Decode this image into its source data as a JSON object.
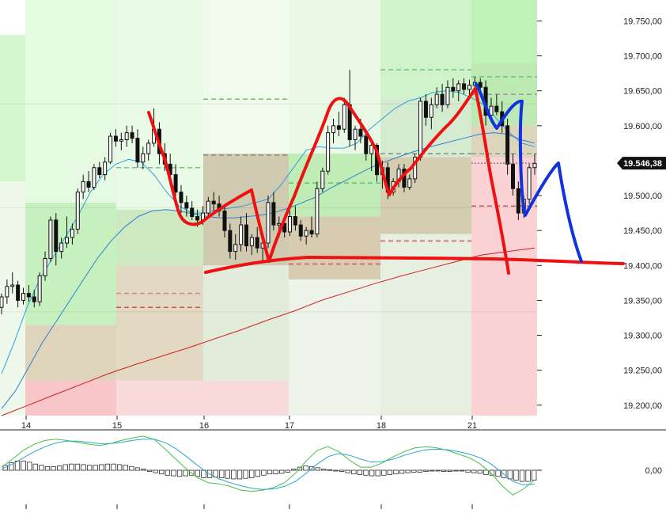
{
  "chart_data": [
    {
      "type": "candlestick",
      "title": "",
      "xlabel": "",
      "ylabel": "",
      "x_tick_labels": [
        "14",
        "15",
        "16",
        "17",
        "18",
        "21"
      ],
      "y_tick_labels": [
        "19.750,00",
        "19.700,00",
        "19.650,00",
        "19.600,00",
        "19.500,00",
        "19.450,00",
        "19.400,00",
        "19.350,00",
        "19.300,00",
        "19.250,00",
        "19.200,00"
      ],
      "y_tick_values": [
        19750,
        19700,
        19650,
        19600,
        19500,
        19450,
        19400,
        19350,
        19300,
        19250,
        19200
      ],
      "ylim": [
        19185,
        19780
      ],
      "grid": false,
      "last_price": 19546.38,
      "last_price_label": "19.546,38",
      "day_bands": [
        {
          "day": "13",
          "zones": [
            [
              19520,
              19730,
              "#d4f7d0"
            ],
            [
              19185,
              19520,
              "#eef9ec"
            ]
          ]
        },
        {
          "day": "14",
          "zones": [
            [
              19490,
              19780,
              "#e6f9e2"
            ],
            [
              19315,
              19490,
              "#c6f1bf"
            ],
            [
              19235,
              19315,
              "#ddd4bb"
            ],
            [
              19185,
              19235,
              "#f8c6c8"
            ]
          ]
        },
        {
          "day": "15",
          "zones": [
            [
              19480,
              19780,
              "#e9fbe6"
            ],
            [
              19400,
              19480,
              "#cde9c2"
            ],
            [
              19235,
              19400,
              "#e3d9c2"
            ],
            [
              19185,
              19235,
              "#f9dadb"
            ]
          ]
        },
        {
          "day": "16",
          "zones": [
            [
              19560,
              19780,
              "#f0fbee"
            ],
            [
              19400,
              19560,
              "#cfcab0"
            ],
            [
              19235,
              19400,
              "#e2ecdb"
            ],
            [
              19185,
              19235,
              "#f9dadb"
            ]
          ]
        },
        {
          "day": "17",
          "zones": [
            [
              19560,
              19780,
              "#eaf9e6"
            ],
            [
              19470,
              19560,
              "#bfedb5"
            ],
            [
              19380,
              19470,
              "#d8ccb0"
            ],
            [
              19185,
              19380,
              "#eef3e9"
            ]
          ]
        },
        {
          "day": "18",
          "zones": [
            [
              19640,
              19780,
              "#d1f3cb"
            ],
            [
              19555,
              19640,
              "#d5ebcf"
            ],
            [
              19445,
              19555,
              "#d4cdb0"
            ],
            [
              19185,
              19445,
              "#e6efe0"
            ]
          ]
        },
        {
          "day": "21",
          "zones": [
            [
              19690,
              19780,
              "#bff2b6"
            ],
            [
              19600,
              19690,
              "#bdeab2"
            ],
            [
              19555,
              19600,
              "#ddd4bc"
            ],
            [
              19185,
              19555,
              "#fad2d4"
            ]
          ]
        }
      ],
      "pivot_lines": [
        {
          "day": "15",
          "y": 19540,
          "color": "#7cc47a"
        },
        {
          "day": "15",
          "y": 19360,
          "color": "#c78a8a"
        },
        {
          "day": "15",
          "y": 19340,
          "color": "#c55"
        },
        {
          "day": "16",
          "y": 19638,
          "color": "#6bbf6b"
        },
        {
          "day": "16",
          "y": 19558,
          "color": "#888"
        },
        {
          "day": "17",
          "y": 19518,
          "color": "#6bbf6b"
        },
        {
          "day": "17",
          "y": 19402,
          "color": "#c55"
        },
        {
          "day": "18",
          "y": 19680,
          "color": "#6bbf6b"
        },
        {
          "day": "18",
          "y": 19560,
          "color": "#888"
        },
        {
          "day": "18",
          "y": 19435,
          "color": "#c55"
        },
        {
          "day": "21",
          "y": 19670,
          "color": "#6bbf6b"
        },
        {
          "day": "21",
          "y": 19645,
          "color": "#999"
        },
        {
          "day": "21",
          "y": 19560,
          "color": "#999"
        },
        {
          "day": "21",
          "y": 19485,
          "color": "#c55"
        }
      ],
      "candles": [
        [
          19340,
          19360,
          19330,
          19355
        ],
        [
          19355,
          19380,
          19345,
          19370
        ],
        [
          19370,
          19390,
          19360,
          19372
        ],
        [
          19372,
          19378,
          19340,
          19350
        ],
        [
          19350,
          19368,
          19344,
          19360
        ],
        [
          19360,
          19372,
          19348,
          19355
        ],
        [
          19355,
          19365,
          19340,
          19348
        ],
        [
          19348,
          19390,
          19342,
          19385
        ],
        [
          19385,
          19420,
          19378,
          19410
        ],
        [
          19410,
          19470,
          19405,
          19465
        ],
        [
          19465,
          19475,
          19400,
          19420
        ],
        [
          19420,
          19440,
          19410,
          19432
        ],
        [
          19432,
          19470,
          19425,
          19440
        ],
        [
          19440,
          19460,
          19430,
          19452
        ],
        [
          19452,
          19510,
          19445,
          19505
        ],
        [
          19505,
          19530,
          19495,
          19520
        ],
        [
          19520,
          19535,
          19505,
          19512
        ],
        [
          19512,
          19545,
          19508,
          19540
        ],
        [
          19540,
          19548,
          19525,
          19530
        ],
        [
          19530,
          19555,
          19522,
          19548
        ],
        [
          19548,
          19590,
          19545,
          19585
        ],
        [
          19585,
          19595,
          19570,
          19578
        ],
        [
          19578,
          19590,
          19565,
          19580
        ],
        [
          19580,
          19600,
          19570,
          19590
        ],
        [
          19590,
          19600,
          19575,
          19582
        ],
        [
          19582,
          19595,
          19540,
          19548
        ],
        [
          19548,
          19570,
          19538,
          19560
        ],
        [
          19560,
          19580,
          19550,
          19575
        ],
        [
          19575,
          19625,
          19570,
          19595
        ],
        [
          19595,
          19605,
          19545,
          19560
        ],
        [
          19560,
          19575,
          19535,
          19545
        ],
        [
          19545,
          19560,
          19520,
          19530
        ],
        [
          19530,
          19545,
          19495,
          19505
        ],
        [
          19505,
          19515,
          19475,
          19490
        ],
        [
          19490,
          19500,
          19470,
          19482
        ],
        [
          19482,
          19492,
          19465,
          19470
        ],
        [
          19470,
          19480,
          19455,
          19465
        ],
        [
          19465,
          19485,
          19458,
          19475
        ],
        [
          19475,
          19498,
          19470,
          19492
        ],
        [
          19492,
          19505,
          19478,
          19488
        ],
        [
          19488,
          19500,
          19470,
          19478
        ],
        [
          19478,
          19488,
          19440,
          19450
        ],
        [
          19450,
          19460,
          19410,
          19420
        ],
        [
          19420,
          19445,
          19408,
          19430
        ],
        [
          19430,
          19470,
          19420,
          19458
        ],
        [
          19458,
          19475,
          19420,
          19428
        ],
        [
          19428,
          19445,
          19415,
          19440
        ],
        [
          19440,
          19455,
          19418,
          19425
        ],
        [
          19425,
          19445,
          19405,
          19432
        ],
        [
          19432,
          19500,
          19425,
          19490
        ],
        [
          19490,
          19505,
          19450,
          19458
        ],
        [
          19458,
          19470,
          19440,
          19460
        ],
        [
          19460,
          19470,
          19440,
          19448
        ],
        [
          19448,
          19478,
          19442,
          19470
        ],
        [
          19470,
          19485,
          19450,
          19458
        ],
        [
          19458,
          19465,
          19435,
          19442
        ],
        [
          19442,
          19455,
          19430,
          19450
        ],
        [
          19450,
          19470,
          19440,
          19445
        ],
        [
          19445,
          19520,
          19440,
          19510
        ],
        [
          19510,
          19540,
          19505,
          19535
        ],
        [
          19535,
          19600,
          19530,
          19590
        ],
        [
          19590,
          19610,
          19575,
          19600
        ],
        [
          19600,
          19620,
          19585,
          19595
        ],
        [
          19595,
          19640,
          19590,
          19630
        ],
        [
          19630,
          19680,
          19570,
          19580
        ],
        [
          19580,
          19600,
          19565,
          19595
        ],
        [
          19595,
          19610,
          19575,
          19585
        ],
        [
          19585,
          19595,
          19550,
          19560
        ],
        [
          19560,
          19580,
          19535,
          19572
        ],
        [
          19572,
          19575,
          19520,
          19530
        ],
        [
          19530,
          19550,
          19510,
          19540
        ],
        [
          19540,
          19548,
          19495,
          19505
        ],
        [
          19505,
          19525,
          19500,
          19520
        ],
        [
          19520,
          19545,
          19512,
          19538
        ],
        [
          19538,
          19545,
          19505,
          19512
        ],
        [
          19512,
          19530,
          19508,
          19524
        ],
        [
          19524,
          19560,
          19518,
          19555
        ],
        [
          19555,
          19640,
          19550,
          19635
        ],
        [
          19635,
          19645,
          19600,
          19612
        ],
        [
          19612,
          19640,
          19595,
          19630
        ],
        [
          19630,
          19655,
          19625,
          19645
        ],
        [
          19645,
          19660,
          19620,
          19630
        ],
        [
          19630,
          19665,
          19625,
          19655
        ],
        [
          19655,
          19668,
          19640,
          19650
        ],
        [
          19650,
          19665,
          19635,
          19660
        ],
        [
          19660,
          19668,
          19645,
          19652
        ],
        [
          19652,
          19666,
          19640,
          19658
        ],
        [
          19658,
          19670,
          19648,
          19662
        ],
        [
          19662,
          19668,
          19645,
          19655
        ],
        [
          19655,
          19665,
          19600,
          19615
        ],
        [
          19615,
          19640,
          19605,
          19628
        ],
        [
          19628,
          19645,
          19615,
          19620
        ],
        [
          19620,
          19635,
          19590,
          19600
        ],
        [
          19600,
          19610,
          19530,
          19545
        ],
        [
          19545,
          19560,
          19500,
          19510
        ],
        [
          19510,
          19520,
          19465,
          19475
        ],
        [
          19475,
          19500,
          19468,
          19495
        ],
        [
          19495,
          19545,
          19488,
          19540
        ],
        [
          19540,
          19560,
          19530,
          19546
        ]
      ],
      "series": [
        {
          "values": [
            19245,
            19290,
            19340,
            19380,
            19410,
            19440,
            19470,
            19505,
            19530,
            19545,
            19552,
            19548,
            19530,
            19505,
            19485,
            19475,
            19475,
            19480,
            19482,
            19485,
            19490,
            19495,
            19515,
            19540,
            19565,
            19570,
            19568,
            19568,
            19575,
            19595,
            19610,
            19625,
            19635,
            19640,
            19648,
            19650,
            19648,
            19640,
            19630,
            19610,
            19590,
            19575,
            19570
          ],
          "color": "#2f9fe0"
        },
        {
          "values": [
            19195,
            19220,
            19255,
            19290,
            19320,
            19350,
            19380,
            19410,
            19435,
            19455,
            19470,
            19478,
            19480,
            19478,
            19474,
            19470,
            19468,
            19468,
            19470,
            19472,
            19476,
            19482,
            19490,
            19498,
            19510,
            19520,
            19530,
            19540,
            19548,
            19555,
            19562,
            19568,
            19573,
            19578,
            19583,
            19588,
            19590,
            19588,
            19580,
            19575
          ],
          "color": "#2f7fd0"
        },
        {
          "values": [
            19185,
            19200,
            19215,
            19230,
            19245,
            19258,
            19270,
            19282,
            19295,
            19308,
            19322,
            19335,
            19350,
            19362,
            19374,
            19385,
            19395,
            19405,
            19415,
            19420,
            19425
          ],
          "color": "#d02020"
        }
      ]
    },
    {
      "type": "macd",
      "y_tick_labels": [
        "0,00"
      ],
      "y_tick_values": [
        0
      ],
      "ylim": [
        -1,
        1
      ],
      "histogram": [
        0.08,
        0.12,
        0.15,
        0.15,
        0.13,
        0.1,
        0.08,
        0.06,
        0.06,
        0.07,
        0.09,
        0.1,
        0.1,
        0.09,
        0.08,
        0.08,
        0.09,
        0.1,
        0.1,
        0.09,
        0.08,
        0.06,
        0.04,
        0.02,
        -0.02,
        -0.04,
        -0.06,
        -0.08,
        -0.09,
        -0.1,
        -0.09,
        -0.08,
        -0.1,
        -0.12,
        -0.12,
        -0.11,
        -0.12,
        -0.13,
        -0.14,
        -0.14,
        -0.13,
        -0.12,
        -0.1,
        -0.08,
        -0.06,
        -0.06,
        -0.05,
        -0.03,
        0.02,
        0.05,
        0.07,
        0.06,
        0.04,
        0.02,
        0.01,
        -0.01,
        -0.02,
        -0.04,
        -0.06,
        -0.07,
        -0.08,
        -0.09,
        -0.09,
        -0.08,
        -0.07,
        -0.06,
        -0.05,
        -0.04,
        -0.03,
        -0.03,
        -0.02,
        -0.01,
        -0.01,
        -0.02,
        -0.02,
        -0.01,
        -0.01,
        -0.03,
        -0.04,
        -0.05,
        -0.07,
        -0.08,
        -0.1,
        -0.12,
        -0.14,
        -0.16,
        -0.18,
        -0.18,
        -0.16
      ],
      "series": [
        {
          "values": [
            0.05,
            0.18,
            0.32,
            0.42,
            0.48,
            0.5,
            0.48,
            0.45,
            0.42,
            0.4,
            0.43,
            0.48,
            0.52,
            0.55,
            0.5,
            0.35,
            0.18,
            0.02,
            -0.12,
            -0.2,
            -0.22,
            -0.26,
            -0.32,
            -0.34,
            -0.32,
            -0.28,
            -0.2,
            -0.05,
            0.15,
            0.32,
            0.38,
            0.3,
            0.16,
            0.05,
            0.05,
            0.12,
            0.22,
            0.3,
            0.36,
            0.38,
            0.36,
            0.32,
            0.26,
            0.2,
            0.1,
            -0.05,
            -0.25,
            -0.4,
            -0.3,
            -0.15
          ],
          "color": "#46c046"
        },
        {
          "values": [
            0.02,
            0.1,
            0.2,
            0.3,
            0.38,
            0.44,
            0.47,
            0.47,
            0.45,
            0.43,
            0.43,
            0.45,
            0.48,
            0.5,
            0.5,
            0.45,
            0.35,
            0.22,
            0.08,
            -0.05,
            -0.14,
            -0.2,
            -0.25,
            -0.29,
            -0.31,
            -0.3,
            -0.26,
            -0.18,
            -0.05,
            0.1,
            0.22,
            0.27,
            0.24,
            0.18,
            0.13,
            0.14,
            0.18,
            0.24,
            0.29,
            0.33,
            0.34,
            0.33,
            0.3,
            0.26,
            0.2,
            0.1,
            -0.04,
            -0.18,
            -0.24,
            -0.22
          ],
          "color": "#2aa6c8"
        }
      ]
    }
  ],
  "annotations": {
    "red_line_color": "#ee1111",
    "blue_line_color": "#1133dd"
  }
}
